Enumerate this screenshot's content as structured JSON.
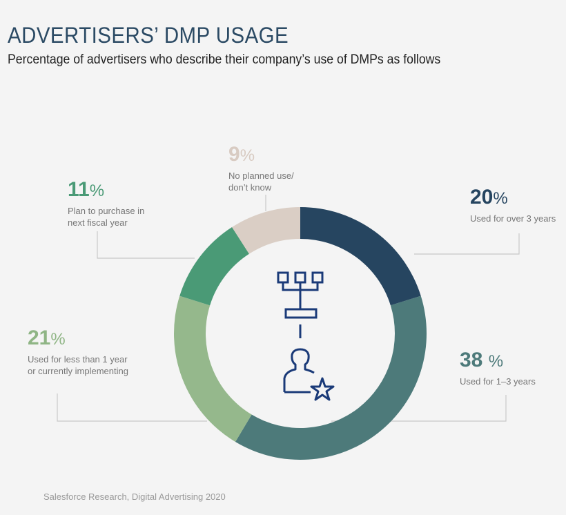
{
  "chart_data": {
    "type": "pie",
    "variant": "donut",
    "title": "ADVERTISERS’ DMP USAGE",
    "subtitle": "Percentage of advertisers who describe their company’s use of DMPs as follows",
    "unit": "%",
    "slices": [
      {
        "label": "Used for over 3 years",
        "value": 20,
        "display": "20",
        "color": "#264560"
      },
      {
        "label": "Used for 1–3 years",
        "value": 38,
        "display": "38 ",
        "color": "#4d7a7a"
      },
      {
        "label": "Used for less than 1 year or currently implementing",
        "value": 21,
        "display": "21",
        "color": "#95b88c"
      },
      {
        "label": "Plan to purchase in next fiscal year",
        "value": 11,
        "display": "11",
        "color": "#4a9a76"
      },
      {
        "label": "No planned use/ don’t know",
        "value": 9,
        "display": "9",
        "color": "#dacec5"
      }
    ],
    "center_icons": [
      "hierarchy-icon",
      "user-star-icon"
    ],
    "icon_color": "#1a3a78"
  },
  "source": "Salesforce Research, Digital Advertising 2020"
}
